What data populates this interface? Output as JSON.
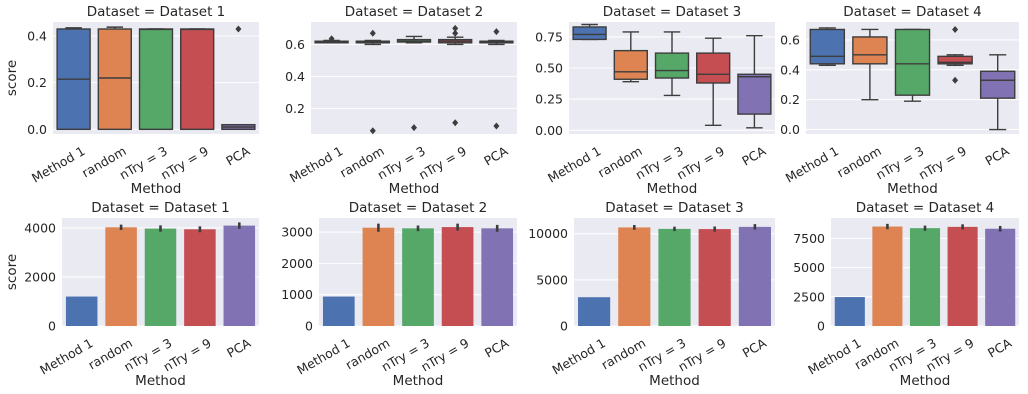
{
  "colors": {
    "background": "#eaeaf2",
    "grid": "#ffffff",
    "text": "#262626",
    "box_line": "#3d3d3d",
    "methods": [
      "#4c72b0",
      "#dd8452",
      "#55a868",
      "#c44e52",
      "#8172b3"
    ]
  },
  "chart_data": [
    {
      "type": "box",
      "title": "Dataset = Dataset 1",
      "xlabel": "Method",
      "ylabel": "score",
      "categories": [
        "Method 1",
        "random",
        "nTry = 3",
        "nTry = 9",
        "PCA"
      ],
      "ylim": [
        -0.02,
        0.46
      ],
      "yticks": [
        0.0,
        0.2,
        0.4
      ],
      "ytick_labels": [
        "0.0",
        "0.2",
        "0.4"
      ],
      "grid": true,
      "boxes": [
        {
          "whislo": 0.0,
          "q1": 0.0,
          "med": 0.215,
          "q3": 0.43,
          "whishi": 0.435,
          "fliers": []
        },
        {
          "whislo": 0.0,
          "q1": 0.0,
          "med": 0.22,
          "q3": 0.43,
          "whishi": 0.438,
          "fliers": []
        },
        {
          "whislo": 0.0,
          "q1": 0.0,
          "med": 0.428,
          "q3": 0.43,
          "whishi": 0.43,
          "fliers": []
        },
        {
          "whislo": 0.0,
          "q1": 0.0,
          "med": 0.428,
          "q3": 0.43,
          "whishi": 0.43,
          "fliers": []
        },
        {
          "whislo": 0.0,
          "q1": 0.0,
          "med": 0.01,
          "q3": 0.02,
          "whishi": 0.02,
          "fliers": [
            0.43
          ]
        }
      ]
    },
    {
      "type": "box",
      "title": "Dataset = Dataset 2",
      "xlabel": "Method",
      "ylabel": "",
      "categories": [
        "Method 1",
        "random",
        "nTry = 3",
        "nTry = 9",
        "PCA"
      ],
      "ylim": [
        0.04,
        0.74
      ],
      "yticks": [
        0.2,
        0.4,
        0.6
      ],
      "ytick_labels": [
        "0.2",
        "0.4",
        "0.6"
      ],
      "grid": true,
      "boxes": [
        {
          "whislo": 0.61,
          "q1": 0.61,
          "med": 0.615,
          "q3": 0.62,
          "whishi": 0.625,
          "fliers": [
            0.635
          ]
        },
        {
          "whislo": 0.6,
          "q1": 0.61,
          "med": 0.615,
          "q3": 0.62,
          "whishi": 0.625,
          "fliers": [
            0.06,
            0.67
          ]
        },
        {
          "whislo": 0.61,
          "q1": 0.615,
          "med": 0.62,
          "q3": 0.63,
          "whishi": 0.65,
          "fliers": [
            0.08
          ]
        },
        {
          "whislo": 0.6,
          "q1": 0.61,
          "med": 0.62,
          "q3": 0.63,
          "whishi": 0.645,
          "fliers": [
            0.11,
            0.67,
            0.7
          ]
        },
        {
          "whislo": 0.6,
          "q1": 0.61,
          "med": 0.615,
          "q3": 0.62,
          "whishi": 0.625,
          "fliers": [
            0.09,
            0.68
          ]
        }
      ]
    },
    {
      "type": "box",
      "title": "Dataset = Dataset 3",
      "xlabel": "Method",
      "ylabel": "",
      "categories": [
        "Method 1",
        "random",
        "nTry = 3",
        "nTry = 9",
        "PCA"
      ],
      "ylim": [
        -0.03,
        0.87
      ],
      "yticks": [
        0.0,
        0.25,
        0.5,
        0.75
      ],
      "ytick_labels": [
        "0.00",
        "0.25",
        "0.50",
        "0.75"
      ],
      "grid": true,
      "boxes": [
        {
          "whislo": 0.73,
          "q1": 0.73,
          "med": 0.77,
          "q3": 0.83,
          "whishi": 0.85,
          "fliers": []
        },
        {
          "whislo": 0.39,
          "q1": 0.41,
          "med": 0.47,
          "q3": 0.64,
          "whishi": 0.79,
          "fliers": []
        },
        {
          "whislo": 0.28,
          "q1": 0.42,
          "med": 0.48,
          "q3": 0.62,
          "whishi": 0.79,
          "fliers": []
        },
        {
          "whislo": 0.04,
          "q1": 0.38,
          "med": 0.45,
          "q3": 0.62,
          "whishi": 0.74,
          "fliers": []
        },
        {
          "whislo": 0.02,
          "q1": 0.13,
          "med": 0.43,
          "q3": 0.45,
          "whishi": 0.76,
          "fliers": []
        }
      ]
    },
    {
      "type": "box",
      "title": "Dataset = Dataset 4",
      "xlabel": "Method",
      "ylabel": "",
      "categories": [
        "Method 1",
        "random",
        "nTry = 3",
        "nTry = 9",
        "PCA"
      ],
      "ylim": [
        -0.03,
        0.72
      ],
      "yticks": [
        0.0,
        0.2,
        0.4,
        0.6
      ],
      "ytick_labels": [
        "0.0",
        "0.2",
        "0.4",
        "0.6"
      ],
      "grid": true,
      "boxes": [
        {
          "whislo": 0.43,
          "q1": 0.44,
          "med": 0.49,
          "q3": 0.67,
          "whishi": 0.68,
          "fliers": []
        },
        {
          "whislo": 0.2,
          "q1": 0.44,
          "med": 0.5,
          "q3": 0.62,
          "whishi": 0.67,
          "fliers": []
        },
        {
          "whislo": 0.19,
          "q1": 0.23,
          "med": 0.44,
          "q3": 0.67,
          "whishi": 0.67,
          "fliers": []
        },
        {
          "whislo": 0.43,
          "q1": 0.44,
          "med": 0.45,
          "q3": 0.49,
          "whishi": 0.5,
          "fliers": [
            0.33,
            0.67
          ]
        },
        {
          "whislo": 0.0,
          "q1": 0.21,
          "med": 0.33,
          "q3": 0.39,
          "whishi": 0.5,
          "fliers": []
        }
      ]
    },
    {
      "type": "bar",
      "title": "Dataset = Dataset 1",
      "xlabel": "Method",
      "ylabel": "score",
      "categories": [
        "Method 1",
        "random",
        "nTry = 3",
        "nTry = 9",
        "PCA"
      ],
      "values": [
        1200,
        4020,
        3970,
        3940,
        4090
      ],
      "errors": [
        0,
        110,
        130,
        120,
        130
      ],
      "ylim": [
        0,
        4400
      ],
      "yticks": [
        0,
        2000,
        4000
      ],
      "ytick_labels": [
        "0",
        "2000",
        "4000"
      ],
      "grid": true
    },
    {
      "type": "bar",
      "title": "Dataset = Dataset 2",
      "xlabel": "Method",
      "ylabel": "",
      "categories": [
        "Method 1",
        "random",
        "nTry = 3",
        "nTry = 9",
        "PCA"
      ],
      "values": [
        940,
        3140,
        3120,
        3160,
        3120
      ],
      "errors": [
        0,
        130,
        90,
        110,
        110
      ],
      "ylim": [
        0,
        3450
      ],
      "yticks": [
        0,
        1000,
        2000,
        3000
      ],
      "ytick_labels": [
        "0",
        "1000",
        "2000",
        "3000"
      ],
      "grid": true
    },
    {
      "type": "bar",
      "title": "Dataset = Dataset 3",
      "xlabel": "Method",
      "ylabel": "",
      "categories": [
        "Method 1",
        "random",
        "nTry = 3",
        "nTry = 9",
        "PCA"
      ],
      "values": [
        3120,
        10680,
        10520,
        10500,
        10740
      ],
      "errors": [
        0,
        260,
        240,
        280,
        300
      ],
      "ylim": [
        0,
        11700
      ],
      "yticks": [
        0,
        5000,
        10000
      ],
      "ytick_labels": [
        "0",
        "5000",
        "10000"
      ],
      "grid": true
    },
    {
      "type": "bar",
      "title": "Dataset = Dataset 4",
      "xlabel": "Method",
      "ylabel": "",
      "categories": [
        "Method 1",
        "random",
        "nTry = 3",
        "nTry = 9",
        "PCA"
      ],
      "values": [
        2480,
        8520,
        8380,
        8490,
        8330
      ],
      "errors": [
        0,
        230,
        220,
        220,
        240
      ],
      "ylim": [
        0,
        9250
      ],
      "yticks": [
        0,
        2500,
        5000,
        7500
      ],
      "ytick_labels": [
        "0",
        "2500",
        "5000",
        "7500"
      ],
      "grid": true
    }
  ]
}
